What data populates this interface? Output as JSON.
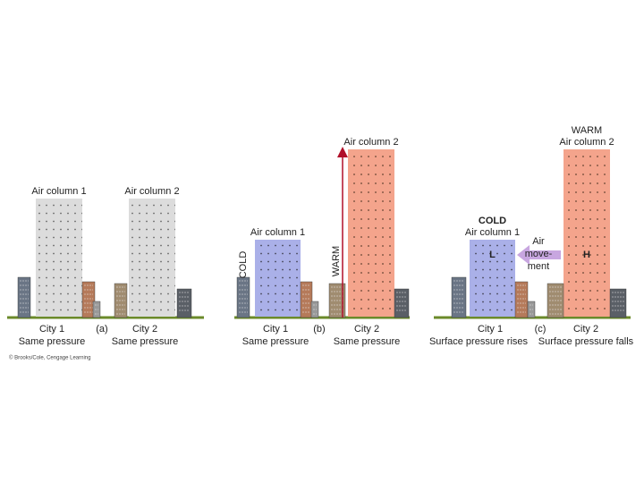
{
  "panels": [
    {
      "tag": "(a)",
      "columns": [
        {
          "label": "Air column 1"
        },
        {
          "label": "Air column 2"
        }
      ],
      "cities": [
        {
          "name": "City 1",
          "pressure": "Same pressure"
        },
        {
          "name": "City 2",
          "pressure": "Same pressure"
        }
      ]
    },
    {
      "tag": "(b)",
      "columns": [
        {
          "label": "Air column 1",
          "temperature": "COLD"
        },
        {
          "label": "Air column 2",
          "temperature": "WARM"
        }
      ],
      "cities": [
        {
          "name": "City 1",
          "pressure": "Same pressure"
        },
        {
          "name": "City 2",
          "pressure": "Same pressure"
        }
      ]
    },
    {
      "tag": "(c)",
      "columns": [
        {
          "label": "Air column 1",
          "temperature": "COLD",
          "pressure_system": "L"
        },
        {
          "label": "Air column 2",
          "temperature": "WARM",
          "pressure_system": "H"
        }
      ],
      "air_movement": [
        "Air",
        "move-",
        "ment"
      ],
      "cities": [
        {
          "name": "City 1",
          "pressure": "Surface pressure rises"
        },
        {
          "name": "City 2",
          "pressure": "Surface pressure falls"
        }
      ]
    }
  ],
  "credit": "© Brooks/Cole, Cengage Learning"
}
